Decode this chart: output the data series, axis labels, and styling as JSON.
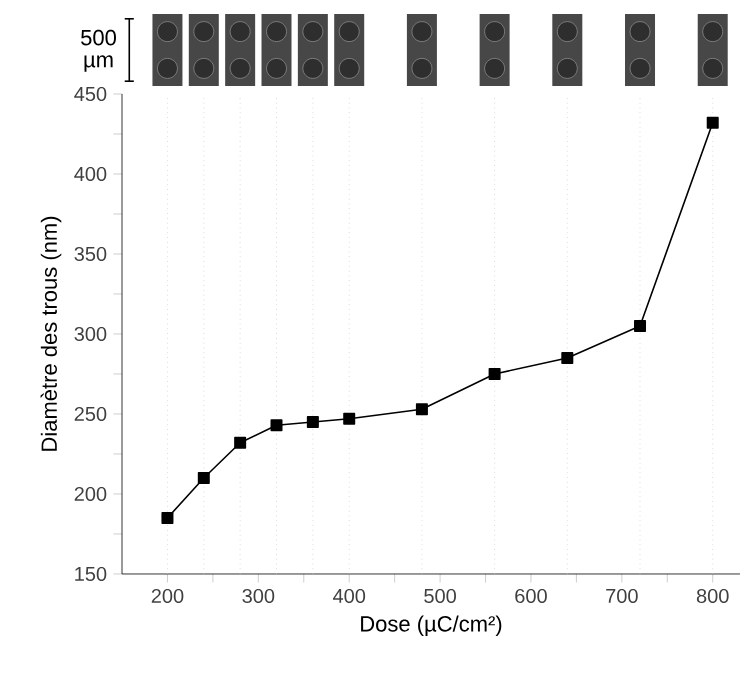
{
  "chart_data": {
    "type": "line",
    "xlabel": "Dose (µC/cm²)",
    "ylabel": "Diamètre des trous (nm)",
    "x": [
      200,
      240,
      280,
      320,
      360,
      400,
      480,
      560,
      640,
      720,
      800
    ],
    "series": [
      {
        "color": "#000000",
        "values": [
          185,
          210,
          232,
          243,
          245,
          247,
          253,
          275,
          285,
          305,
          432
        ]
      }
    ],
    "marker": "square",
    "line_style": "solid",
    "xlim": [
      150,
      830
    ],
    "ylim": [
      150,
      450
    ],
    "xticks": [
      200,
      {
        "value": 250,
        "label": null
      },
      300,
      {
        "value": 350,
        "label": null
      },
      400,
      {
        "value": 450,
        "label": null
      },
      500,
      {
        "value": 550,
        "label": null
      },
      600,
      {
        "value": 650,
        "label": null
      },
      700,
      {
        "value": 750,
        "label": null
      },
      800
    ],
    "yticks": [
      150,
      {
        "value": 175,
        "label": null
      },
      200,
      {
        "value": 225,
        "label": null
      },
      250,
      {
        "value": 275,
        "label": null
      },
      300,
      {
        "value": 325,
        "label": null
      },
      350,
      {
        "value": 375,
        "label": null
      },
      400,
      {
        "value": 425,
        "label": null
      },
      450
    ],
    "ref_lines": [
      {
        "axis": "x",
        "value": 200,
        "color": "#c8c8c8",
        "line_style": "dotted"
      },
      {
        "axis": "x",
        "value": 240,
        "color": "#c8c8c8",
        "line_style": "dotted"
      },
      {
        "axis": "x",
        "value": 280,
        "color": "#c8c8c8",
        "line_style": "dotted"
      },
      {
        "axis": "x",
        "value": 320,
        "color": "#c8c8c8",
        "line_style": "dotted"
      },
      {
        "axis": "x",
        "value": 360,
        "color": "#c8c8c8",
        "line_style": "dotted"
      },
      {
        "axis": "x",
        "value": 400,
        "color": "#c8c8c8",
        "line_style": "dotted"
      },
      {
        "axis": "x",
        "value": 480,
        "color": "#c8c8c8",
        "line_style": "dotted"
      },
      {
        "axis": "x",
        "value": 560,
        "color": "#c8c8c8",
        "line_style": "dotted"
      },
      {
        "axis": "x",
        "value": 640,
        "color": "#c8c8c8",
        "line_style": "dotted"
      },
      {
        "axis": "x",
        "value": 720,
        "color": "#c8c8c8",
        "line_style": "dotted"
      },
      {
        "axis": "x",
        "value": 800,
        "color": "#c8c8c8",
        "line_style": "dotted"
      }
    ],
    "annotations": [
      "500 µm"
    ]
  }
}
